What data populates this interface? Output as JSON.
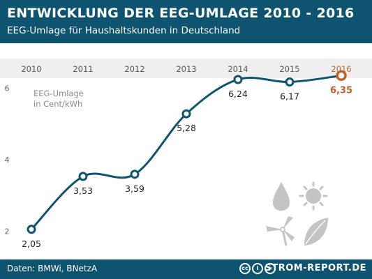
{
  "header": {
    "title": "ENTWICKLUNG DER EEG-UMLAGE 2010 - 2016",
    "subtitle": "EEG-Umlage für Haushaltskunden in Deutschland"
  },
  "footer": {
    "source": "Daten: BMWi, BNetzA",
    "brand": "STROM-REPORT.DE",
    "license_icons": [
      "cc",
      "i",
      "="
    ]
  },
  "colors": {
    "header_bg": "#0e5470",
    "line": "#0e5470",
    "highlight": "#c0622a",
    "band": "#efefef",
    "icons": "#c4c4c4"
  },
  "icons": [
    "water-drop-icon",
    "sun-icon",
    "wind-turbine-icon",
    "leaf-icon"
  ],
  "chart_data": {
    "type": "line",
    "x": [
      "2010",
      "2011",
      "2012",
      "2013",
      "2014",
      "2015",
      "2016"
    ],
    "series": [
      {
        "values": [
          2.05,
          3.53,
          3.59,
          5.28,
          6.24,
          6.17,
          6.35
        ]
      }
    ],
    "data_labels": [
      "2,05",
      "3,53",
      "3,59",
      "5,28",
      "6,24",
      "6,17",
      "6,35"
    ],
    "highlight_index": 6,
    "ylabel_lines": [
      "EEG-Umlage",
      "in Cent/kWh"
    ],
    "yticks": [
      2,
      4,
      6
    ],
    "ytick_labels": [
      "2",
      "4",
      "6"
    ],
    "ylim": [
      1.5,
      7
    ],
    "grid": false,
    "legend": "none"
  }
}
